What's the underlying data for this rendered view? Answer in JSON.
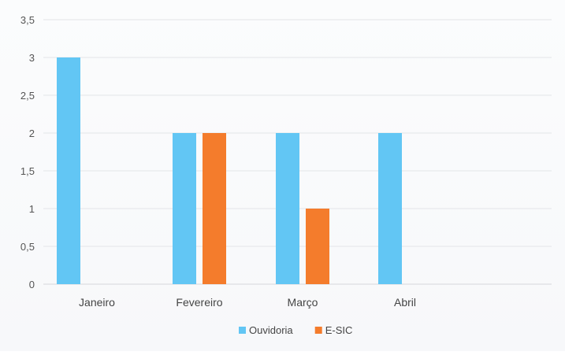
{
  "chart_data": {
    "type": "bar",
    "categories": [
      "Janeiro",
      "Fevereiro",
      "Março",
      "Abril"
    ],
    "series": [
      {
        "name": "Ouvidoria",
        "color": "#62c6f4",
        "values": [
          3,
          2,
          2,
          2
        ]
      },
      {
        "name": "E-SIC",
        "color": "#f47c2c",
        "values": [
          0,
          2,
          1,
          0
        ]
      }
    ],
    "y_ticks": [
      "0",
      "0,5",
      "1",
      "1,5",
      "2",
      "2,5",
      "3",
      "3,5"
    ],
    "ylim": [
      0,
      3.5
    ],
    "grid": true,
    "legend_position": "bottom"
  }
}
